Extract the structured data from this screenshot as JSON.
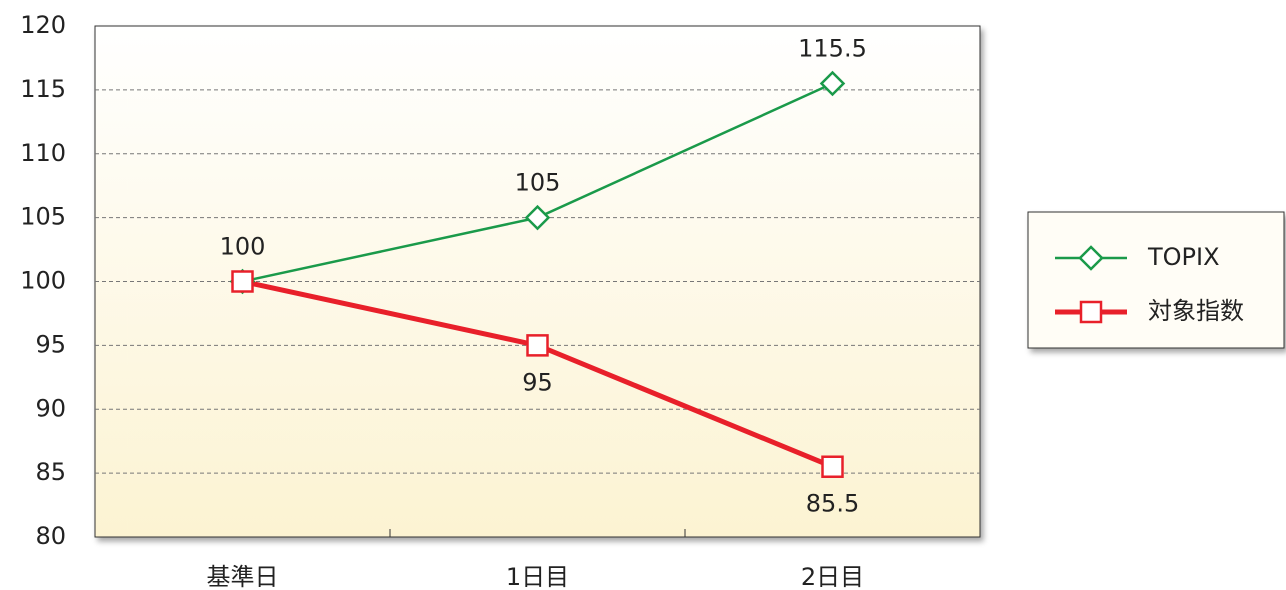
{
  "chart_data": {
    "type": "line",
    "categories": [
      "基準日",
      "1日目",
      "2日目"
    ],
    "series": [
      {
        "name": "TOPIX",
        "color": "#1a9a4a",
        "values": [
          100,
          105,
          115.5
        ],
        "value_labels": [
          "100",
          "105",
          "115.5"
        ]
      },
      {
        "name": "対象指数",
        "color": "#e8202a",
        "values": [
          100,
          95,
          85.5
        ],
        "value_labels": [
          null,
          "95",
          "85.5"
        ]
      }
    ],
    "ylim": [
      80,
      120
    ],
    "yticks": [
      80,
      85,
      90,
      95,
      100,
      105,
      110,
      115,
      120
    ],
    "grid": true,
    "legend": "right"
  }
}
